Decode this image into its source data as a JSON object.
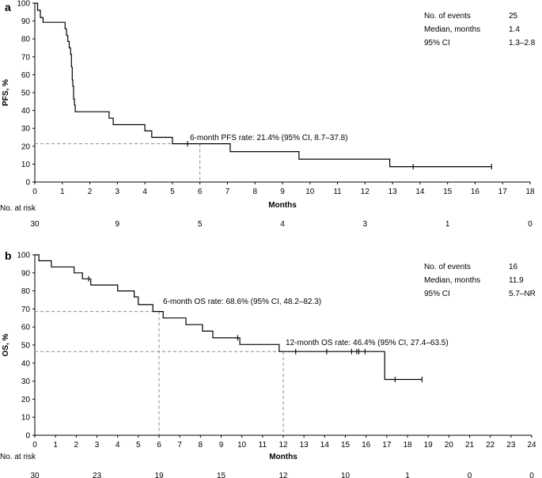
{
  "chart_data": [
    {
      "type": "line",
      "panel": "a",
      "ylabel": "PFS, %",
      "xlabel": "Months",
      "xlim": [
        0,
        18
      ],
      "ylim": [
        0,
        100
      ],
      "xticks": [
        0,
        1,
        2,
        3,
        4,
        5,
        6,
        7,
        8,
        9,
        10,
        11,
        12,
        13,
        14,
        15,
        16,
        17,
        18
      ],
      "yticks": [
        0,
        10,
        20,
        30,
        40,
        50,
        60,
        70,
        80,
        90,
        100
      ],
      "curve": [
        [
          0,
          100
        ],
        [
          0.1,
          96
        ],
        [
          0.2,
          92
        ],
        [
          0.3,
          89.3
        ],
        [
          1.1,
          85.7
        ],
        [
          1.15,
          82
        ],
        [
          1.2,
          78.6
        ],
        [
          1.25,
          75
        ],
        [
          1.3,
          71.4
        ],
        [
          1.33,
          64.3
        ],
        [
          1.36,
          57.1
        ],
        [
          1.38,
          53.6
        ],
        [
          1.41,
          46.4
        ],
        [
          1.44,
          42.9
        ],
        [
          1.47,
          39.3
        ],
        [
          2.7,
          35.7
        ],
        [
          2.85,
          32.1
        ],
        [
          4.0,
          28.6
        ],
        [
          4.25,
          25
        ],
        [
          5.0,
          21.4
        ],
        [
          7.1,
          17
        ],
        [
          9.6,
          12.8
        ],
        [
          12.9,
          8.6
        ],
        [
          16.6,
          8.6
        ]
      ],
      "censored": [
        [
          5.55,
          21.4
        ],
        [
          13.75,
          8.6
        ],
        [
          16.6,
          8.6
        ]
      ],
      "reference_lines": [
        {
          "x": 6,
          "y": 21.4,
          "label": "6-month PFS rate: 21.4% (95% CI, 8.7–37.8)"
        }
      ],
      "stats": [
        {
          "label": "No. of events",
          "value": "25"
        },
        {
          "label": "Median, months",
          "value": "1.4"
        },
        {
          "label": "95% CI",
          "value": "1.3–2.8"
        }
      ],
      "risk_title": "No. at risk",
      "risk_table": [
        {
          "month": 0,
          "n": "30"
        },
        {
          "month": 3,
          "n": "9"
        },
        {
          "month": 6,
          "n": "5"
        },
        {
          "month": 9,
          "n": "4"
        },
        {
          "month": 12,
          "n": "3"
        },
        {
          "month": 15,
          "n": "1"
        },
        {
          "month": 18,
          "n": "0"
        }
      ]
    },
    {
      "type": "line",
      "panel": "b",
      "ylabel": "OS, %",
      "xlabel": "Months",
      "xlim": [
        0,
        24
      ],
      "ylim": [
        0,
        100
      ],
      "xticks": [
        0,
        1,
        2,
        3,
        4,
        5,
        6,
        7,
        8,
        9,
        10,
        11,
        12,
        13,
        14,
        15,
        16,
        17,
        18,
        19,
        20,
        21,
        22,
        23,
        24
      ],
      "yticks": [
        0,
        10,
        20,
        30,
        40,
        50,
        60,
        70,
        80,
        90,
        100
      ],
      "curve": [
        [
          0,
          100
        ],
        [
          0.2,
          96.7
        ],
        [
          0.8,
          93.3
        ],
        [
          1.9,
          90
        ],
        [
          2.3,
          86.7
        ],
        [
          2.7,
          83.3
        ],
        [
          4.0,
          80
        ],
        [
          4.8,
          76.7
        ],
        [
          5.0,
          72.4
        ],
        [
          5.7,
          68.6
        ],
        [
          6.2,
          65
        ],
        [
          7.3,
          61.3
        ],
        [
          8.1,
          57.7
        ],
        [
          8.6,
          54
        ],
        [
          9.9,
          50.3
        ],
        [
          11.8,
          46.4
        ],
        [
          16.9,
          30.9
        ],
        [
          18.7,
          30.9
        ]
      ],
      "censored": [
        [
          2.6,
          86.7
        ],
        [
          9.8,
          54
        ],
        [
          12.6,
          46.4
        ],
        [
          14.1,
          46.4
        ],
        [
          15.3,
          46.4
        ],
        [
          15.55,
          46.4
        ],
        [
          15.65,
          46.4
        ],
        [
          15.95,
          46.4
        ],
        [
          17.4,
          30.9
        ],
        [
          18.7,
          30.9
        ]
      ],
      "reference_lines": [
        {
          "x": 6,
          "y": 68.6,
          "label": "6-month OS rate: 68.6% (95% CI, 48.2–82.3)"
        },
        {
          "x": 12,
          "y": 46.4,
          "label": "12-month OS rate: 46.4% (95% CI, 27.4–63.5)"
        }
      ],
      "stats": [
        {
          "label": "No. of events",
          "value": "16"
        },
        {
          "label": "Median, months",
          "value": "11.9"
        },
        {
          "label": "95% CI",
          "value": "5.7–NR"
        }
      ],
      "risk_title": "No. at risk",
      "risk_table": [
        {
          "month": 0,
          "n": "30"
        },
        {
          "month": 3,
          "n": "23"
        },
        {
          "month": 6,
          "n": "19"
        },
        {
          "month": 9,
          "n": "15"
        },
        {
          "month": 12,
          "n": "12"
        },
        {
          "month": 15,
          "n": "10"
        },
        {
          "month": 18,
          "n": "1"
        },
        {
          "month": 21,
          "n": "0"
        },
        {
          "month": 24,
          "n": "0"
        }
      ]
    }
  ],
  "colors": {
    "curve": "#000000",
    "axis": "#000000",
    "reference": "#8c8c8c"
  }
}
